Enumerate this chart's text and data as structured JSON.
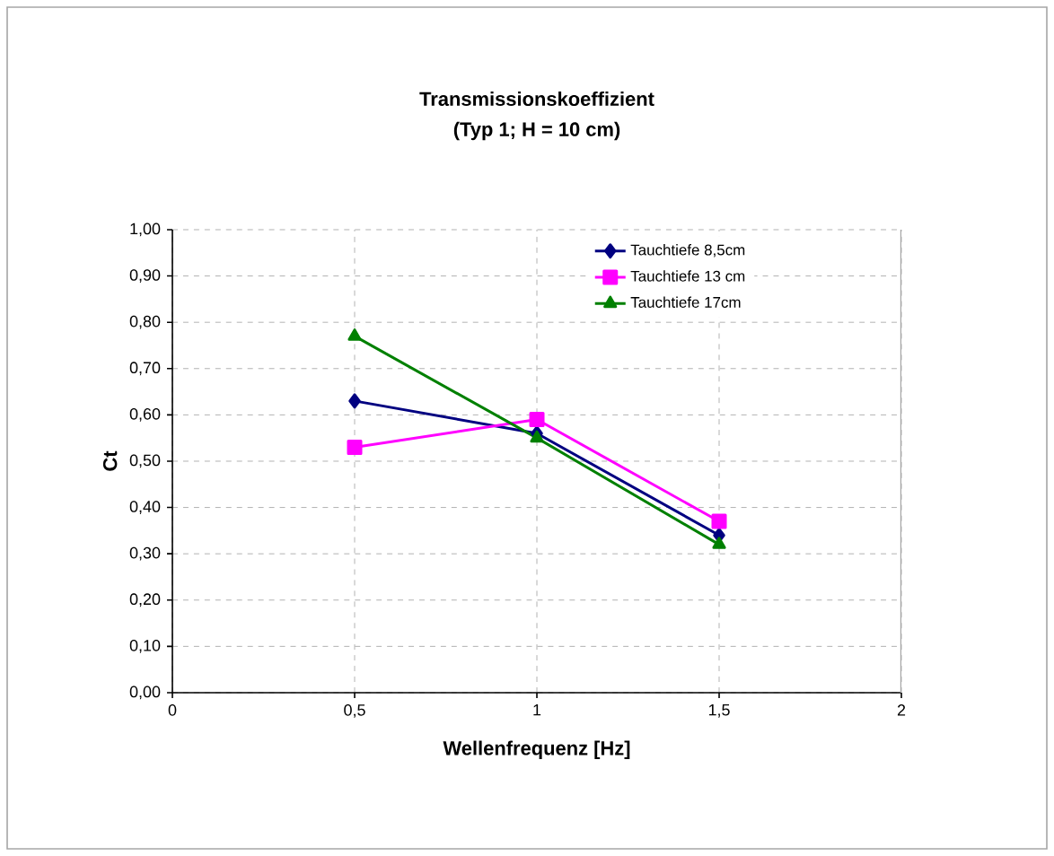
{
  "chart_data": {
    "type": "line",
    "title": "Transmissionskoeffizient",
    "subtitle": "(Typ 1; H = 10 cm)",
    "xlabel": "Wellenfrequenz [Hz]",
    "ylabel": "Ct",
    "x": [
      0.5,
      1,
      1.5
    ],
    "series": [
      {
        "name": "Tauchtiefe 8,5cm",
        "color": "#000080",
        "marker": "diamond",
        "values": [
          0.63,
          0.56,
          0.34
        ]
      },
      {
        "name": "Tauchtiefe 13 cm",
        "color": "#ff00ff",
        "marker": "square",
        "values": [
          0.53,
          0.59,
          0.37
        ]
      },
      {
        "name": "Tauchtiefe 17cm",
        "color": "#008000",
        "marker": "triangle",
        "values": [
          0.77,
          0.55,
          0.32
        ]
      }
    ],
    "xlim": [
      0,
      2
    ],
    "xticks": [
      0,
      {
        "value": 0.5,
        "label": "0,5"
      },
      1,
      {
        "value": 1.5,
        "label": "1,5"
      },
      2
    ],
    "ylim": [
      0,
      1
    ],
    "yticks": [
      {
        "value": 0,
        "label": "0,00"
      },
      {
        "value": 0.1,
        "label": "0,10"
      },
      {
        "value": 0.2,
        "label": "0,20"
      },
      {
        "value": 0.3,
        "label": "0,30"
      },
      {
        "value": 0.4,
        "label": "0,40"
      },
      {
        "value": 0.5,
        "label": "0,50"
      },
      {
        "value": 0.6,
        "label": "0,60"
      },
      {
        "value": 0.7,
        "label": "0,70"
      },
      {
        "value": 0.8,
        "label": "0,80"
      },
      {
        "value": 0.9,
        "label": "0,90"
      },
      {
        "value": 1,
        "label": "1,00"
      }
    ],
    "grid": true,
    "legend": "top right",
    "line_style": "solid"
  }
}
